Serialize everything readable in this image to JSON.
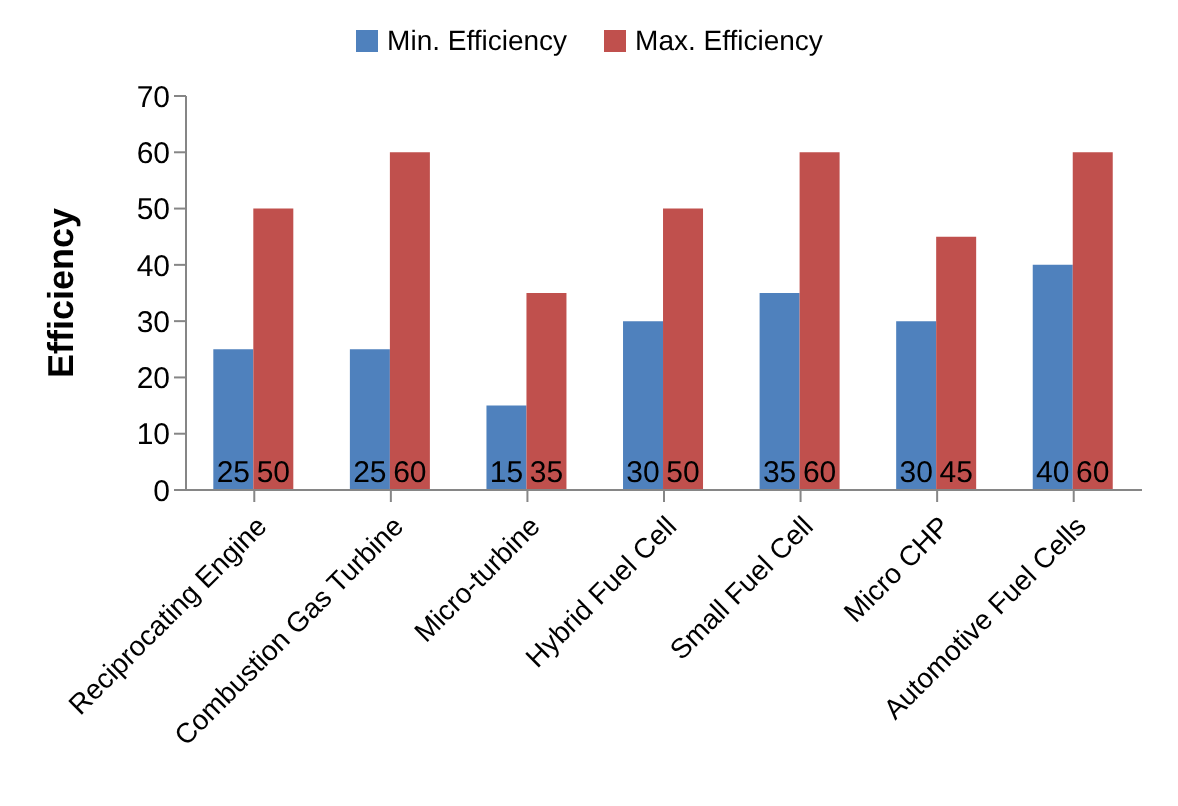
{
  "chart_data": {
    "type": "bar",
    "ylabel": "Efficiency",
    "categories": [
      "Reciprocating Engine",
      "Combustion Gas Turbine",
      "Micro-turbine",
      "Hybrid Fuel Cell",
      "Small Fuel Cell",
      "Micro CHP",
      "Automotive Fuel Cells"
    ],
    "series": [
      {
        "name": "Min. Efficiency",
        "color": "#4f81bd",
        "values": [
          25,
          25,
          15,
          30,
          35,
          30,
          40
        ]
      },
      {
        "name": "Max. Efficiency",
        "color": "#c0504d",
        "values": [
          50,
          60,
          35,
          50,
          60,
          45,
          60
        ]
      }
    ],
    "ylim": [
      0,
      70
    ],
    "yticks": [
      0,
      10,
      20,
      30,
      40,
      50,
      60,
      70
    ],
    "grid": false,
    "legend": "top",
    "data_labels": true
  }
}
